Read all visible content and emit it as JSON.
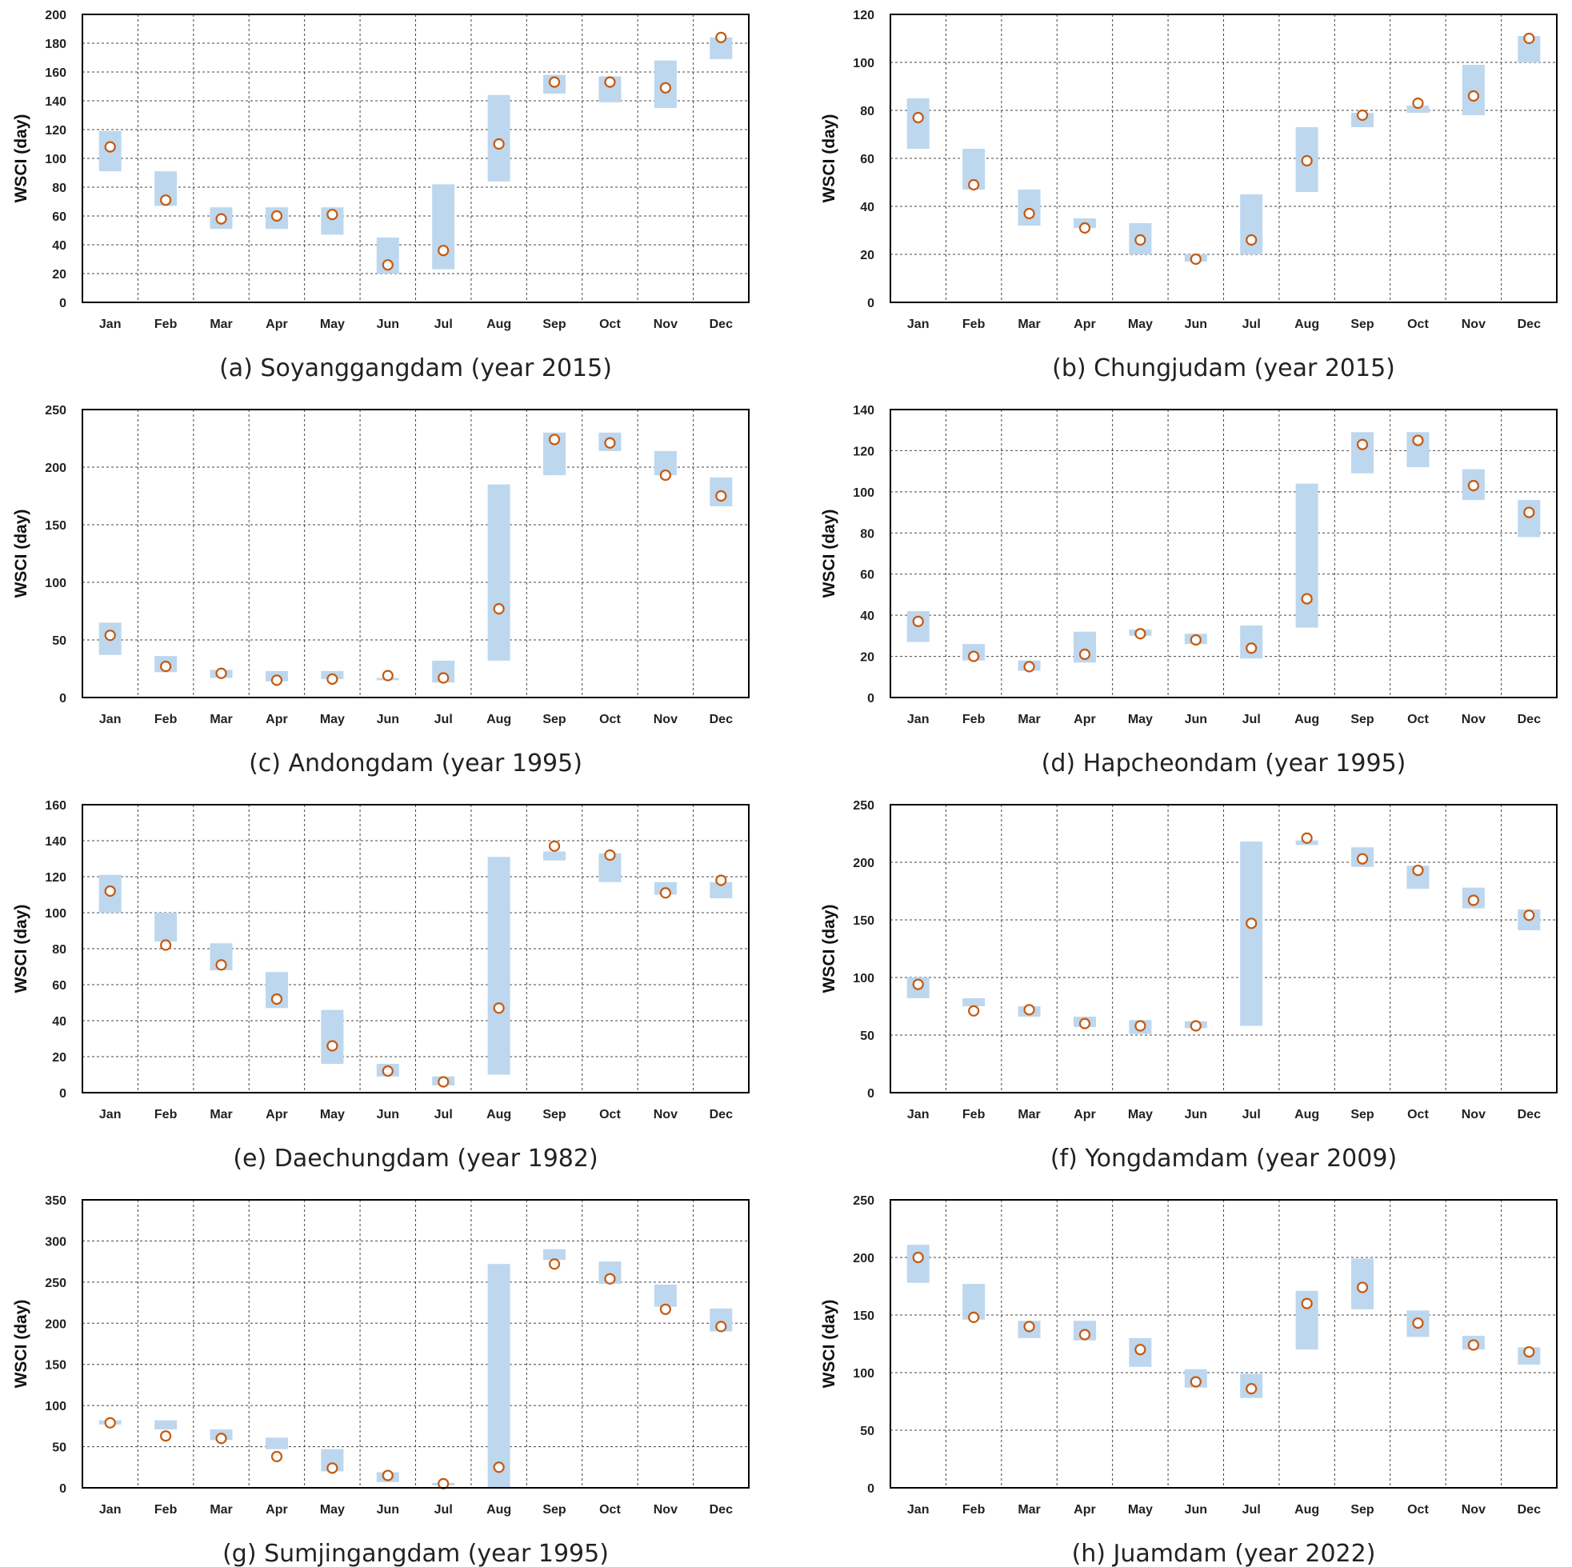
{
  "colors": {
    "band": "#bdd7ee",
    "marker": "#c55a11",
    "grid": "#444444",
    "axis": "#000000"
  },
  "months": [
    "Jan",
    "Feb",
    "Mar",
    "Apr",
    "May",
    "Jun",
    "Jul",
    "Aug",
    "Sep",
    "Oct",
    "Nov",
    "Dec"
  ],
  "chart_data": [
    {
      "type": "range-scatter",
      "caption": "(a) Soyanggangdam (year 2015)",
      "ylabel": "WSCI (day)",
      "ylim": [
        0,
        200
      ],
      "yticks": [
        0,
        20,
        40,
        60,
        80,
        100,
        120,
        140,
        160,
        180,
        200
      ],
      "grid": true,
      "categories": [
        "Jan",
        "Feb",
        "Mar",
        "Apr",
        "May",
        "Jun",
        "Jul",
        "Aug",
        "Sep",
        "Oct",
        "Nov",
        "Dec"
      ],
      "range_low": [
        91,
        67,
        51,
        51,
        47,
        20,
        23,
        84,
        145,
        139,
        135,
        169
      ],
      "range_high": [
        119,
        91,
        66,
        66,
        66,
        45,
        82,
        144,
        158,
        157,
        168,
        184
      ],
      "values": [
        108,
        71,
        58,
        60,
        61,
        26,
        36,
        110,
        153,
        153,
        149,
        184
      ]
    },
    {
      "type": "range-scatter",
      "caption": "(b) Chungjudam (year 2015)",
      "ylabel": "WSCI (day)",
      "ylim": [
        0,
        120
      ],
      "yticks": [
        0,
        20,
        40,
        60,
        80,
        100,
        120
      ],
      "grid": true,
      "categories": [
        "Jan",
        "Feb",
        "Mar",
        "Apr",
        "May",
        "Jun",
        "Jul",
        "Aug",
        "Sep",
        "Oct",
        "Nov",
        "Dec"
      ],
      "range_low": [
        64,
        47,
        32,
        31,
        20,
        17,
        20,
        46,
        73,
        79,
        78,
        100
      ],
      "range_high": [
        85,
        64,
        47,
        35,
        33,
        20,
        45,
        73,
        79,
        82,
        99,
        111
      ],
      "values": [
        77,
        49,
        37,
        31,
        26,
        18,
        26,
        59,
        78,
        83,
        86,
        110
      ]
    },
    {
      "type": "range-scatter",
      "caption": "(c) Andongdam (year 1995)",
      "ylabel": "WSCI (day)",
      "ylim": [
        0,
        250
      ],
      "yticks": [
        0,
        50,
        100,
        150,
        200,
        250
      ],
      "grid": true,
      "categories": [
        "Jan",
        "Feb",
        "Mar",
        "Apr",
        "May",
        "Jun",
        "Jul",
        "Aug",
        "Sep",
        "Oct",
        "Nov",
        "Dec"
      ],
      "range_low": [
        37,
        22,
        17,
        14,
        16,
        15,
        13,
        32,
        193,
        214,
        193,
        166
      ],
      "range_high": [
        65,
        36,
        24,
        23,
        23,
        17,
        32,
        185,
        230,
        230,
        214,
        191
      ],
      "values": [
        54,
        27,
        21,
        15,
        16,
        19,
        17,
        77,
        224,
        221,
        193,
        175
      ]
    },
    {
      "type": "range-scatter",
      "caption": "(d) Hapcheondam (year 1995)",
      "ylabel": "WSCI (day)",
      "ylim": [
        0,
        140
      ],
      "yticks": [
        0,
        20,
        40,
        60,
        80,
        100,
        120,
        140
      ],
      "grid": true,
      "categories": [
        "Jan",
        "Feb",
        "Mar",
        "Apr",
        "May",
        "Jun",
        "Jul",
        "Aug",
        "Sep",
        "Oct",
        "Nov",
        "Dec"
      ],
      "range_low": [
        27,
        18,
        13,
        17,
        30,
        26,
        19,
        34,
        109,
        112,
        96,
        78
      ],
      "range_high": [
        42,
        26,
        18,
        32,
        33,
        31,
        35,
        104,
        129,
        129,
        111,
        96
      ],
      "values": [
        37,
        20,
        15,
        21,
        31,
        28,
        24,
        48,
        123,
        125,
        103,
        90
      ]
    },
    {
      "type": "range-scatter",
      "caption": "(e) Daechungdam (year 1982)",
      "ylabel": "WSCI (day)",
      "ylim": [
        0,
        160
      ],
      "yticks": [
        0,
        20,
        40,
        60,
        80,
        100,
        120,
        140,
        160
      ],
      "grid": true,
      "categories": [
        "Jan",
        "Feb",
        "Mar",
        "Apr",
        "May",
        "Jun",
        "Jul",
        "Aug",
        "Sep",
        "Oct",
        "Nov",
        "Dec"
      ],
      "range_low": [
        100,
        84,
        68,
        47,
        16,
        9,
        4,
        10,
        129,
        117,
        110,
        108
      ],
      "range_high": [
        121,
        100,
        83,
        67,
        46,
        16,
        9,
        131,
        134,
        133,
        117,
        117
      ],
      "values": [
        112,
        82,
        71,
        52,
        26,
        12,
        6,
        47,
        137,
        132,
        111,
        118
      ]
    },
    {
      "type": "range-scatter",
      "caption": "(f) Yongdamdam (year 2009)",
      "ylabel": "WSCI (day)",
      "ylim": [
        0,
        250
      ],
      "yticks": [
        0,
        50,
        100,
        150,
        200,
        250
      ],
      "grid": true,
      "categories": [
        "Jan",
        "Feb",
        "Mar",
        "Apr",
        "May",
        "Jun",
        "Jul",
        "Aug",
        "Sep",
        "Oct",
        "Nov",
        "Dec"
      ],
      "range_low": [
        82,
        75,
        66,
        57,
        51,
        56,
        58,
        215,
        196,
        177,
        160,
        141
      ],
      "range_high": [
        100,
        82,
        75,
        66,
        63,
        62,
        218,
        219,
        213,
        197,
        178,
        159
      ],
      "values": [
        94,
        71,
        72,
        60,
        58,
        58,
        147,
        221,
        203,
        193,
        167,
        154
      ]
    },
    {
      "type": "range-scatter",
      "caption": "(g) Sumjingangdam (year 1995)",
      "ylabel": "WSCI (day)",
      "ylim": [
        0,
        350
      ],
      "yticks": [
        0,
        50,
        100,
        150,
        200,
        250,
        300,
        350
      ],
      "grid": true,
      "categories": [
        "Jan",
        "Feb",
        "Mar",
        "Apr",
        "May",
        "Jun",
        "Jul",
        "Aug",
        "Sep",
        "Oct",
        "Nov",
        "Dec"
      ],
      "range_low": [
        77,
        71,
        58,
        47,
        20,
        7,
        3,
        0,
        277,
        248,
        220,
        190
      ],
      "range_high": [
        82,
        82,
        71,
        61,
        47,
        19,
        6,
        272,
        290,
        275,
        247,
        218
      ],
      "values": [
        79,
        63,
        60,
        38,
        24,
        15,
        5,
        25,
        272,
        254,
        217,
        196
      ]
    },
    {
      "type": "range-scatter",
      "caption": "(h) Juamdam (year 2022)",
      "ylabel": "WSCI (day)",
      "ylim": [
        0,
        250
      ],
      "yticks": [
        0,
        50,
        100,
        150,
        200,
        250
      ],
      "grid": true,
      "categories": [
        "Jan",
        "Feb",
        "Mar",
        "Apr",
        "May",
        "Jun",
        "Jul",
        "Aug",
        "Sep",
        "Oct",
        "Nov",
        "Dec"
      ],
      "range_low": [
        178,
        146,
        130,
        128,
        105,
        87,
        78,
        120,
        155,
        131,
        120,
        107
      ],
      "range_high": [
        211,
        177,
        145,
        145,
        130,
        103,
        99,
        171,
        199,
        154,
        132,
        122
      ],
      "values": [
        200,
        148,
        140,
        133,
        120,
        92,
        86,
        160,
        174,
        143,
        124,
        118
      ]
    }
  ]
}
